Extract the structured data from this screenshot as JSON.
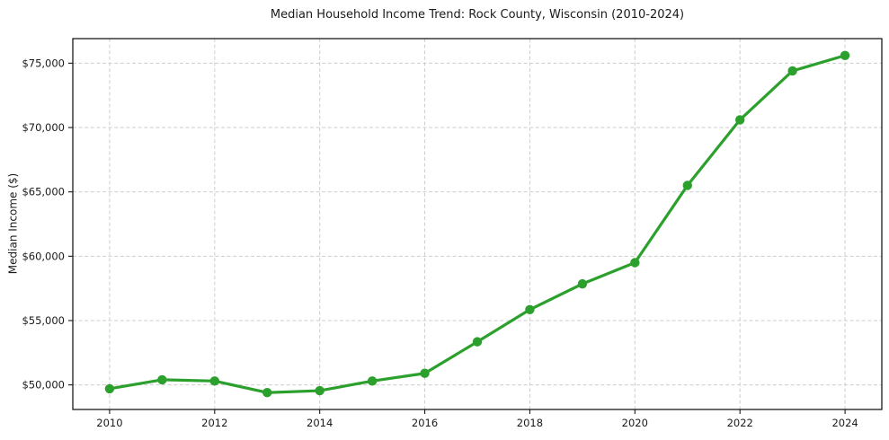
{
  "chart_data": {
    "type": "line",
    "title": "Median Household Income Trend: Rock County, Wisconsin (2010-2024)",
    "xlabel": "",
    "ylabel": "Median Income ($)",
    "x": [
      2010,
      2011,
      2012,
      2013,
      2014,
      2015,
      2016,
      2017,
      2018,
      2019,
      2020,
      2021,
      2022,
      2023,
      2024
    ],
    "series": [
      {
        "name": "Median Household Income",
        "color": "#2ca02c",
        "values": [
          49700,
          50400,
          50300,
          49400,
          49550,
          50300,
          50900,
          53350,
          55850,
          57850,
          59500,
          65500,
          70600,
          74400,
          75600
        ]
      }
    ],
    "xticks": [
      2010,
      2012,
      2014,
      2016,
      2018,
      2020,
      2022,
      2024
    ],
    "xtick_labels": [
      "2010",
      "2012",
      "2014",
      "2016",
      "2018",
      "2020",
      "2022",
      "2024"
    ],
    "yticks": [
      50000,
      55000,
      60000,
      65000,
      70000,
      75000
    ],
    "ytick_labels": [
      "$50,000",
      "$55,000",
      "$60,000",
      "$65,000",
      "$70,000",
      "$75,000"
    ],
    "xlim": [
      2009.3,
      2024.7
    ],
    "ylim": [
      48090,
      76910
    ],
    "grid": true,
    "grid_style": "dashed",
    "legend": "none",
    "marker": "circle",
    "marker_radius": 5.2,
    "line_width": 3.2,
    "grid_color": "#cdcdcd",
    "text_color": "#1a1a1a"
  }
}
